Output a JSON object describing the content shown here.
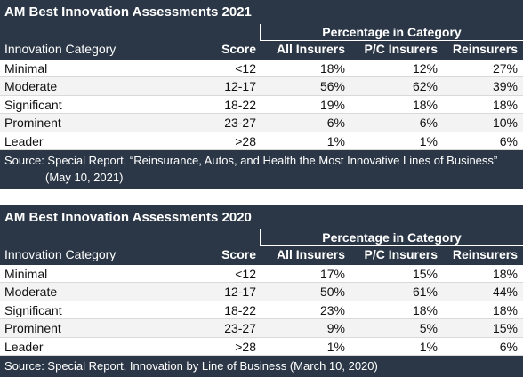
{
  "tables": [
    {
      "title": "AM Best Innovation Assessments 2021",
      "group_header": "Percentage in Category",
      "columns": {
        "category": "Innovation Category",
        "score": "Score",
        "all": "All Insurers",
        "pc": "P/C Insurers",
        "re": "Reinsurers"
      },
      "rows": [
        {
          "category": "Minimal",
          "score": "<12",
          "all": "18%",
          "pc": "12%",
          "re": "27%"
        },
        {
          "category": "Moderate",
          "score": "12-17",
          "all": "56%",
          "pc": "62%",
          "re": "39%"
        },
        {
          "category": "Significant",
          "score": "18-22",
          "all": "19%",
          "pc": "18%",
          "re": "18%"
        },
        {
          "category": "Prominent",
          "score": "23-27",
          "all": "6%",
          "pc": "6%",
          "re": "10%"
        },
        {
          "category": "Leader",
          "score": ">28",
          "all": "1%",
          "pc": "1%",
          "re": "6%"
        }
      ],
      "source_lines": [
        "Source: Special Report, “Reinsurance, Autos, and Health the Most Innovative Lines of Business”",
        "(May 10, 2021)"
      ]
    },
    {
      "title": "AM Best Innovation Assessments 2020",
      "group_header": "Percentage in Category",
      "columns": {
        "category": "Innovation Category",
        "score": "Score",
        "all": "All Insurers",
        "pc": "P/C Insurers",
        "re": "Reinsurers"
      },
      "rows": [
        {
          "category": "Minimal",
          "score": "<12",
          "all": "17%",
          "pc": "15%",
          "re": "18%"
        },
        {
          "category": "Moderate",
          "score": "12-17",
          "all": "50%",
          "pc": "61%",
          "re": "44%"
        },
        {
          "category": "Significant",
          "score": "18-22",
          "all": "23%",
          "pc": "18%",
          "re": "18%"
        },
        {
          "category": "Prominent",
          "score": "23-27",
          "all": "9%",
          "pc": "5%",
          "re": "15%"
        },
        {
          "category": "Leader",
          "score": ">28",
          "all": "1%",
          "pc": "1%",
          "re": "6%"
        }
      ],
      "source_lines": [
        "Source: Special Report, Innovation by Line of Business (March 10, 2020)"
      ]
    }
  ],
  "colors": {
    "header_bg": "#2b3746",
    "header_text": "#ffffff",
    "row_alt_bg": "#f3f3f3"
  }
}
